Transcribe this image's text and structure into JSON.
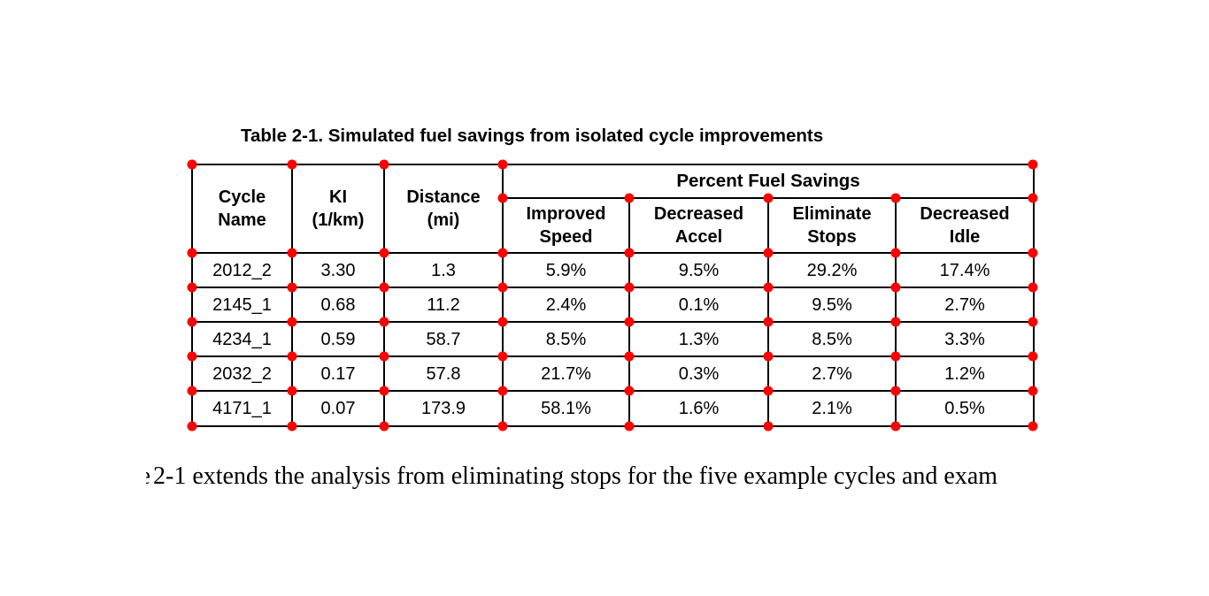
{
  "document": {
    "table_caption": "Table 2-1. Simulated fuel savings from isolated cycle improvements",
    "table": {
      "col_cycle_name": "Cycle\nName",
      "col_ki": "KI\n(1/km)",
      "col_distance": "Distance\n(mi)",
      "group_header": "Percent Fuel Savings",
      "sub_improved_speed": "Improved\nSpeed",
      "sub_decreased_accel": "Decreased\nAccel",
      "sub_eliminate_stops": "Eliminate\nStops",
      "sub_decreased_idle": "Decreased\nIdle",
      "rows": [
        {
          "cycle_name": "2012_2",
          "ki": "3.30",
          "distance": "1.3",
          "improved_speed": "5.9%",
          "decreased_accel": "9.5%",
          "eliminate_stops": "29.2%",
          "decreased_idle": "17.4%"
        },
        {
          "cycle_name": "2145_1",
          "ki": "0.68",
          "distance": "11.2",
          "improved_speed": "2.4%",
          "decreased_accel": "0.1%",
          "eliminate_stops": "9.5%",
          "decreased_idle": "2.7%"
        },
        {
          "cycle_name": "4234_1",
          "ki": "0.59",
          "distance": "58.7",
          "improved_speed": "8.5%",
          "decreased_accel": "1.3%",
          "eliminate_stops": "8.5%",
          "decreased_idle": "3.3%"
        },
        {
          "cycle_name": "2032_2",
          "ki": "0.17",
          "distance": "57.8",
          "improved_speed": "21.7%",
          "decreased_accel": "0.3%",
          "eliminate_stops": "2.7%",
          "decreased_idle": "1.2%"
        },
        {
          "cycle_name": "4171_1",
          "ki": "0.07",
          "distance": "173.9",
          "improved_speed": "58.1%",
          "decreased_accel": "1.6%",
          "eliminate_stops": "2.1%",
          "decreased_idle": "0.5%"
        }
      ]
    },
    "body_text": {
      "clipped_prefix": "e",
      "visible_text": "2-1 extends the analysis from eliminating stops for the five example cycles and exam"
    }
  },
  "annotations": {
    "marker_color": "#ff0000"
  }
}
